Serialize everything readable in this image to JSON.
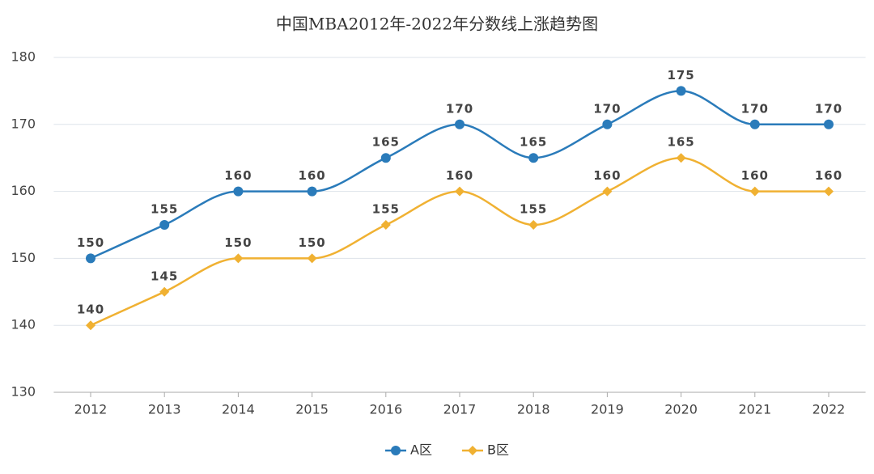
{
  "chart_data": {
    "type": "line",
    "title": "中国MBA2012年-2022年分数线上涨趋势图",
    "categories": [
      "2012",
      "2013",
      "2014",
      "2015",
      "2016",
      "2017",
      "2018",
      "2019",
      "2020",
      "2021",
      "2022"
    ],
    "series": [
      {
        "name": "A区",
        "color": "#2a7bba",
        "marker": "circle",
        "values": [
          150,
          155,
          160,
          160,
          165,
          170,
          165,
          170,
          175,
          170,
          170
        ]
      },
      {
        "name": "B区",
        "color": "#f0b132",
        "marker": "diamond",
        "values": [
          140,
          145,
          150,
          150,
          155,
          160,
          155,
          160,
          165,
          160,
          160
        ]
      }
    ],
    "ylim": [
      130,
      180
    ],
    "yticks": [
      130,
      140,
      150,
      160,
      170,
      180
    ],
    "grid": true,
    "smooth": true,
    "legend": "bottom"
  }
}
